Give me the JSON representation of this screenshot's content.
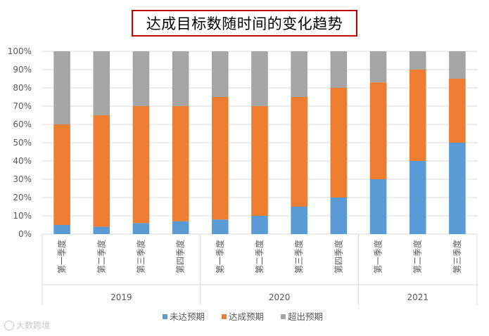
{
  "chart_data": {
    "type": "bar",
    "stacked": true,
    "title": "达成目标数随时间的变化趋势",
    "ylim": [
      0,
      100
    ],
    "y_ticks": [
      "0%",
      "10%",
      "20%",
      "30%",
      "40%",
      "50%",
      "60%",
      "70%",
      "80%",
      "90%",
      "100%"
    ],
    "groups": [
      {
        "label": "2019",
        "categories": [
          "第一季度",
          "第二季度",
          "第三季度",
          "第四季度"
        ]
      },
      {
        "label": "2020",
        "categories": [
          "第一季度",
          "第二季度",
          "第三季度",
          "第四季度"
        ]
      },
      {
        "label": "2021",
        "categories": [
          "第一季度",
          "第二季度",
          "第三季度"
        ]
      }
    ],
    "series": [
      {
        "name": "未达预期",
        "color": "#5b9bd5",
        "values": [
          5,
          4,
          6,
          7,
          8,
          10,
          15,
          20,
          30,
          40,
          50
        ]
      },
      {
        "name": "达成预期",
        "color": "#ed7d31",
        "values": [
          55,
          61,
          64,
          63,
          67,
          60,
          60,
          60,
          53,
          50,
          35
        ]
      },
      {
        "name": "超出预期",
        "color": "#a5a5a5",
        "values": [
          40,
          35,
          30,
          30,
          25,
          30,
          25,
          20,
          17,
          10,
          15
        ]
      }
    ],
    "legend_position": "bottom",
    "grid": true
  },
  "watermark": "大数跨境"
}
